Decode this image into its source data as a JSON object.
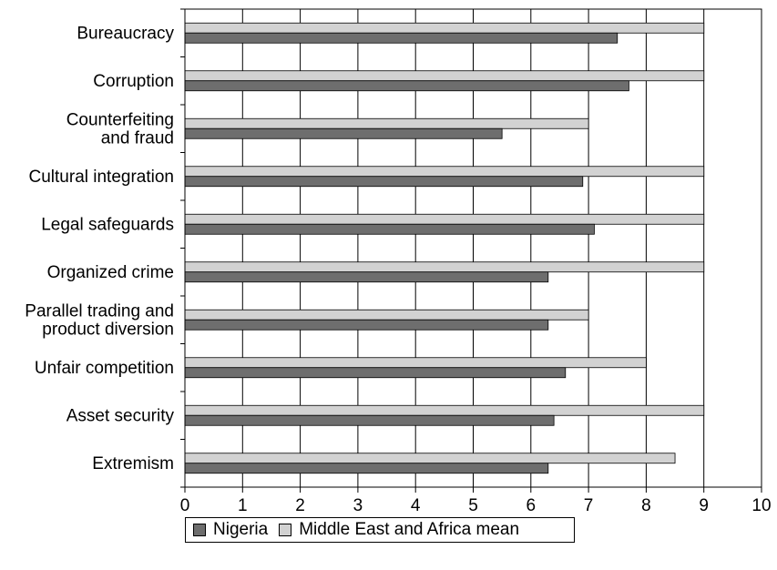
{
  "chart_data": {
    "type": "bar",
    "orientation": "horizontal",
    "categories": [
      [
        "Bureaucracy"
      ],
      [
        "Corruption"
      ],
      [
        "Counterfeiting",
        "and fraud"
      ],
      [
        "Cultural integration"
      ],
      [
        "Legal safeguards"
      ],
      [
        "Organized crime"
      ],
      [
        "Parallel trading and",
        "product diversion"
      ],
      [
        "Unfair competition"
      ],
      [
        "Asset security"
      ],
      [
        "Extremism"
      ]
    ],
    "series": [
      {
        "name": "Middle East and Africa mean",
        "color": "#d2d2d2",
        "values": [
          9,
          9,
          7,
          9,
          9,
          9,
          7,
          8,
          9,
          8.5
        ]
      },
      {
        "name": "Nigeria",
        "color": "#6e6e6e",
        "values": [
          7.5,
          7.7,
          5.5,
          6.9,
          7.1,
          6.3,
          6.3,
          6.6,
          6.4,
          6.3
        ]
      }
    ],
    "xlim": [
      0,
      10
    ],
    "xticks": [
      "0",
      "1",
      "2",
      "3",
      "4",
      "5",
      "6",
      "7",
      "8",
      "9",
      "10"
    ],
    "grid": true,
    "xlabel": "",
    "ylabel": ""
  },
  "legend": {
    "items": [
      {
        "label": "Nigeria",
        "color": "#6e6e6e"
      },
      {
        "label": "Middle East and Africa mean",
        "color": "#d2d2d2"
      }
    ]
  }
}
